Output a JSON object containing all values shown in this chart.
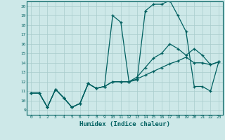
{
  "xlabel": "Humidex (Indice chaleur)",
  "background_color": "#cde8e8",
  "grid_color": "#a8cccc",
  "line_color": "#006060",
  "xlim": [
    -0.5,
    23.5
  ],
  "ylim": [
    8.5,
    20.5
  ],
  "xticks": [
    0,
    1,
    2,
    3,
    4,
    5,
    6,
    7,
    8,
    9,
    10,
    11,
    12,
    13,
    14,
    15,
    16,
    17,
    18,
    19,
    20,
    21,
    22,
    23
  ],
  "yticks": [
    9,
    10,
    11,
    12,
    13,
    14,
    15,
    16,
    17,
    18,
    19,
    20
  ],
  "series": [
    [
      10.8,
      10.8,
      9.3,
      11.2,
      10.3,
      9.3,
      9.7,
      11.8,
      11.3,
      11.5,
      19.0,
      18.3,
      12.0,
      12.2,
      19.5,
      20.2,
      20.2,
      20.6,
      19.0,
      17.3,
      11.5,
      11.5,
      11.0,
      14.1
    ],
    [
      10.8,
      10.8,
      9.3,
      11.2,
      10.3,
      9.3,
      9.7,
      11.8,
      11.3,
      11.5,
      12.0,
      12.0,
      12.0,
      12.5,
      13.5,
      14.5,
      15.0,
      16.0,
      15.5,
      14.8,
      15.5,
      14.8,
      13.8,
      14.1
    ],
    [
      10.8,
      10.8,
      9.3,
      11.2,
      10.3,
      9.3,
      9.7,
      11.8,
      11.3,
      11.5,
      12.0,
      12.0,
      12.0,
      12.3,
      12.7,
      13.1,
      13.5,
      13.9,
      14.2,
      14.6,
      14.0,
      14.0,
      13.8,
      14.1
    ]
  ]
}
